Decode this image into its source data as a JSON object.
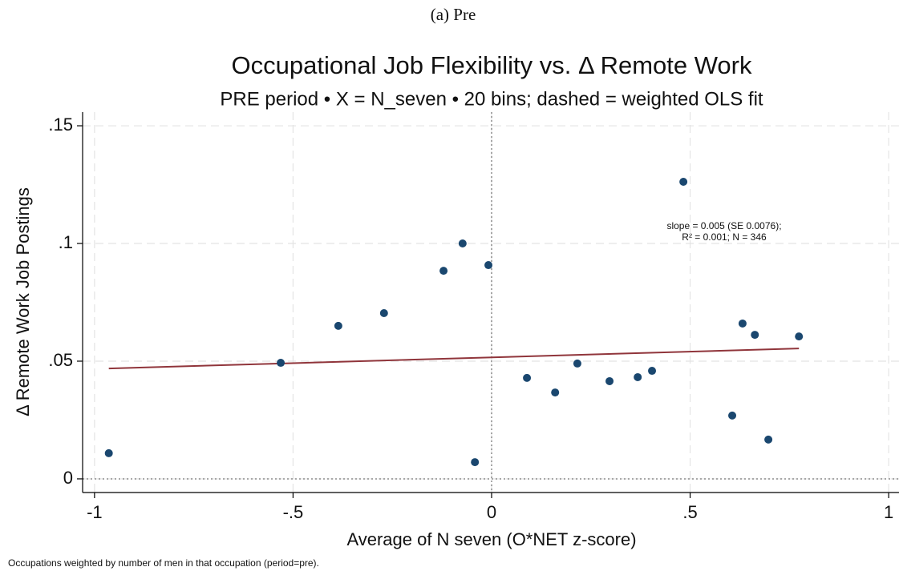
{
  "chart_data": {
    "type": "scatter",
    "caption": "(a) Pre",
    "title": "Occupational Job Flexibility vs. Δ Remote Work",
    "subtitle": "PRE period • X = N_seven • 20 bins; dashed = weighted OLS fit",
    "xlabel": "Average of N seven (O*NET z-score)",
    "ylabel": "Δ Remote Work Job Postings",
    "note": "Occupations weighted by number of men in that occupation (period=pre).",
    "annotation": [
      "slope = 0.005  (SE 0.0076);",
      "R² = 0.001;  N = 346"
    ],
    "xlim": [
      -1.03,
      1.026
    ],
    "ylim": [
      -0.0058,
      0.1558
    ],
    "xticks": [
      -1,
      {
        "value": -0.5,
        "label": "-.5"
      },
      0,
      {
        "value": 0.5,
        "label": ".5"
      },
      1
    ],
    "yticks": [
      0,
      {
        "value": 0.05,
        "label": ".05"
      },
      {
        "value": 0.1,
        "label": ".1"
      },
      {
        "value": 0.15,
        "label": ".15"
      }
    ],
    "grid": true,
    "points": {
      "color": "#1a476f",
      "x": [
        -0.964,
        -0.531,
        -0.386,
        -0.271,
        -0.121,
        -0.073,
        -0.008,
        -0.042,
        0.089,
        0.16,
        0.216,
        0.297,
        0.368,
        0.404,
        0.483,
        0.606,
        0.632,
        0.663,
        0.697,
        0.774
      ],
      "y": [
        0.0109,
        0.0493,
        0.065,
        0.0704,
        0.0884,
        0.1,
        0.0908,
        0.0071,
        0.0429,
        0.0367,
        0.049,
        0.0415,
        0.0432,
        0.0459,
        0.1262,
        0.0269,
        0.066,
        0.0612,
        0.0167,
        0.0605
      ]
    },
    "fit_line": {
      "color": "#90353b",
      "x": [
        -0.964,
        0.774
      ],
      "y": [
        0.0469,
        0.0554
      ]
    }
  }
}
